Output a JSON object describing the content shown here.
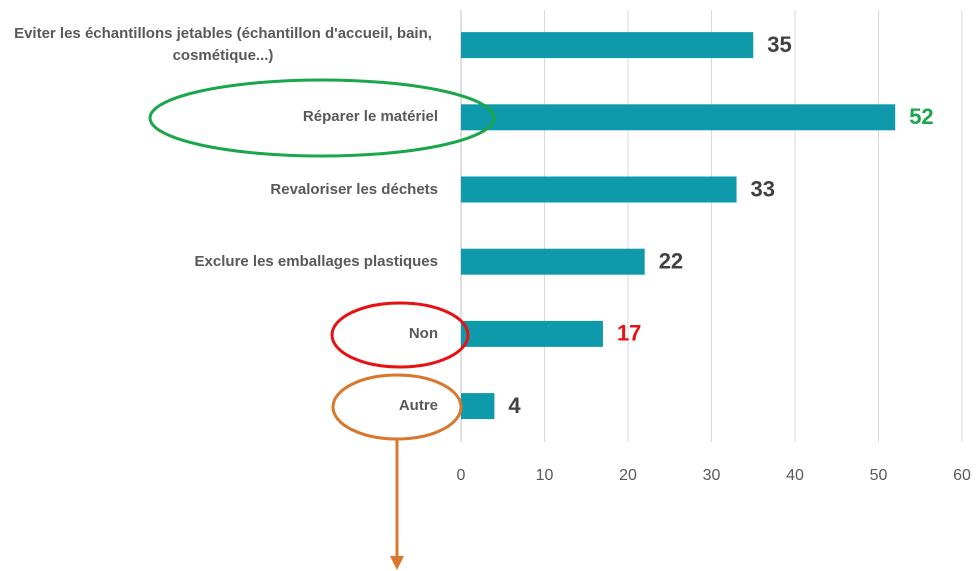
{
  "chart_data": {
    "type": "bar",
    "orientation": "horizontal",
    "categories": [
      "Eviter les échantillons jetables (échantillon d'accueil, bain, cosmétique...)",
      "Réparer le matériel",
      "Revaloriser les déchets",
      "Exclure les emballages plastiques",
      "Non",
      "Autre"
    ],
    "values": [
      35,
      52,
      33,
      22,
      17,
      4
    ],
    "color": "#0e9aab",
    "value_label_colors": [
      "#404040",
      "#1aa64a",
      "#404040",
      "#404040",
      "#e81010",
      "#404040"
    ],
    "xlim": [
      0,
      60
    ],
    "xticks": [
      0,
      10,
      20,
      30,
      40,
      50,
      60
    ],
    "grid": true
  }
}
